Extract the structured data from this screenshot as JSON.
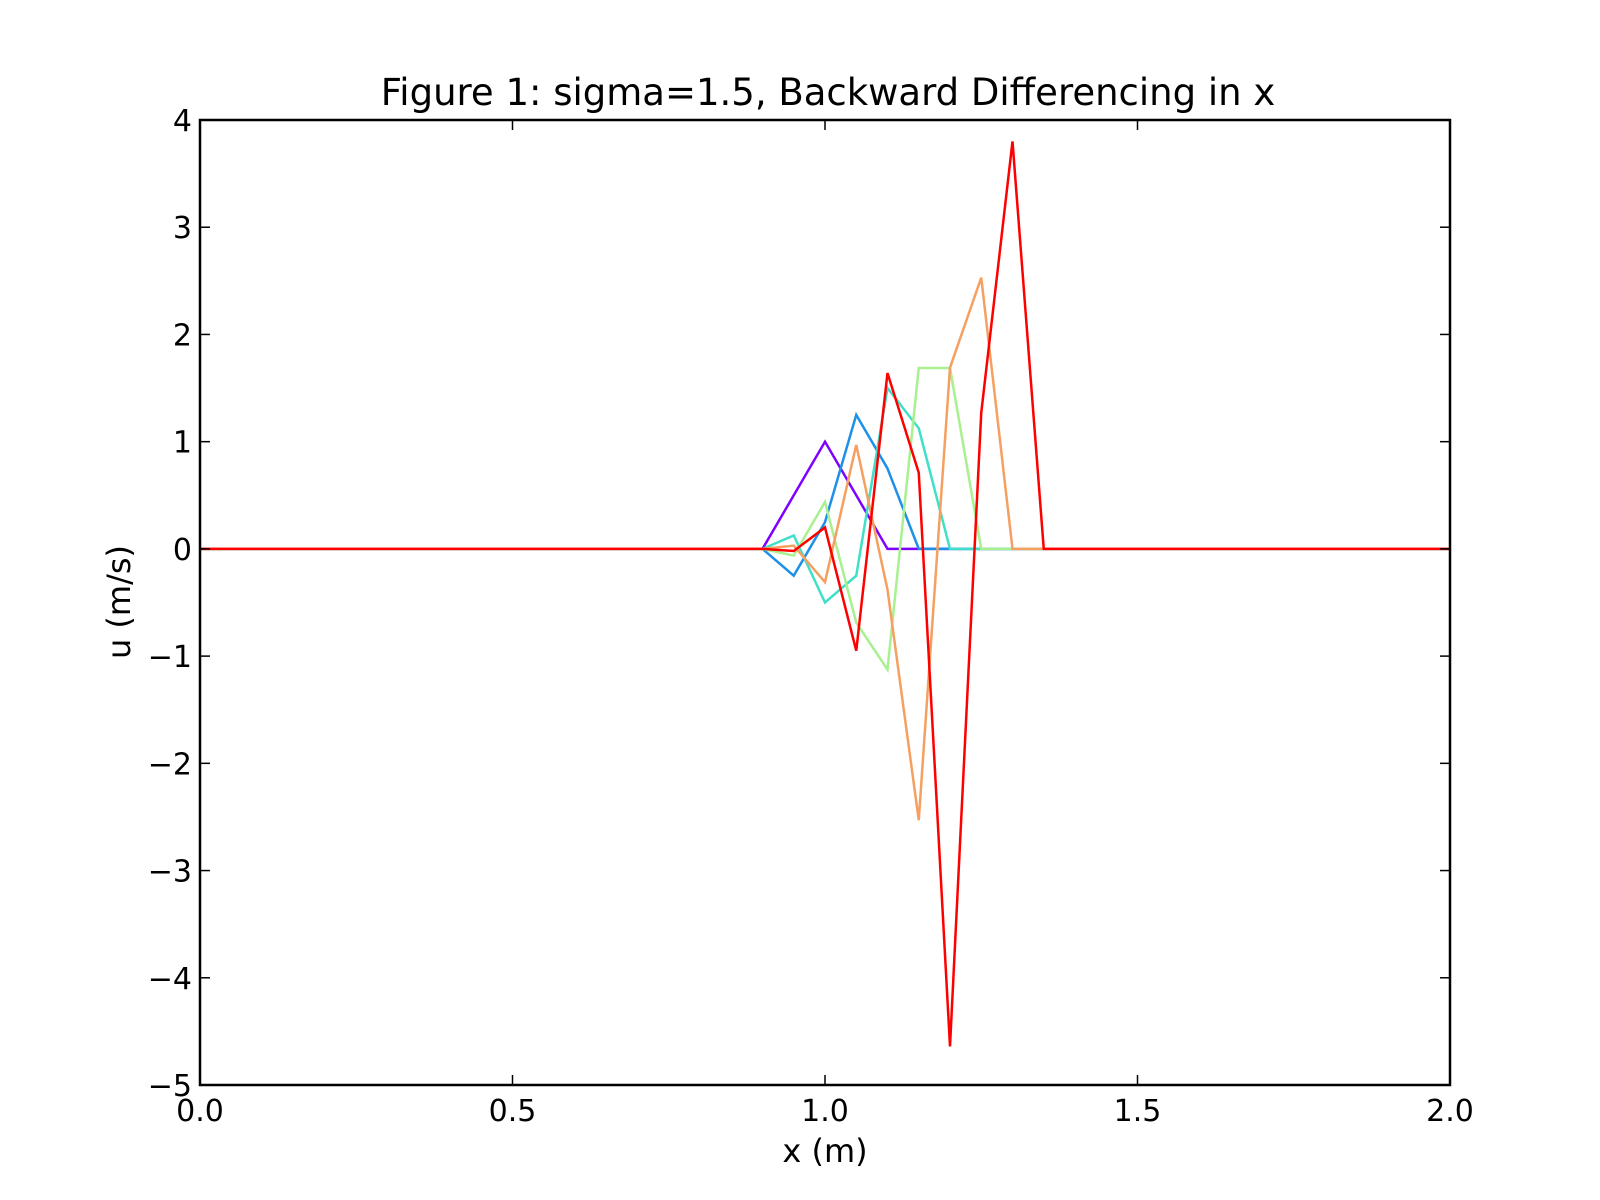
{
  "chart_data": {
    "type": "line",
    "title": "Figure 1: sigma=1.5, Backward Differencing in x",
    "xlabel": "x (m)",
    "ylabel": "u (m/s)",
    "xlim": [
      0.0,
      2.0
    ],
    "ylim": [
      -5,
      4
    ],
    "grid": false,
    "legend": "none",
    "xticks": [
      0.0,
      0.5,
      1.0,
      1.5,
      2.0
    ],
    "xtick_labels": [
      "0.0",
      "0.5",
      "1.0",
      "1.5",
      "2.0"
    ],
    "yticks": [
      -5,
      -4,
      -3,
      -2,
      -1,
      0,
      1,
      2,
      3,
      4
    ],
    "ytick_labels": [
      "−5",
      "−4",
      "−3",
      "−2",
      "−1",
      "0",
      "1",
      "2",
      "3",
      "4"
    ],
    "series": [
      {
        "color": "#8000ff",
        "x": [
          0.0,
          0.9,
          1.0,
          1.1,
          2.0
        ],
        "y": [
          0,
          0,
          1.0,
          0,
          0
        ]
      },
      {
        "color": "#1e90e8",
        "x": [
          0.0,
          0.9,
          0.95,
          1.0,
          1.05,
          1.1,
          1.15,
          2.0
        ],
        "y": [
          0,
          0,
          -0.25,
          0.25,
          1.25,
          0.75,
          0,
          0
        ]
      },
      {
        "color": "#40e0c8",
        "x": [
          0.0,
          0.9,
          0.95,
          1.0,
          1.05,
          1.1,
          1.15,
          1.2,
          2.0
        ],
        "y": [
          0,
          0,
          0.125,
          -0.5,
          -0.25,
          1.5,
          1.125,
          0,
          0
        ]
      },
      {
        "color": "#a8f090",
        "x": [
          0.0,
          0.9,
          0.95,
          1.0,
          1.05,
          1.1,
          1.15,
          1.2,
          1.25,
          2.0
        ],
        "y": [
          0,
          0,
          -0.0625,
          0.4375,
          -0.6875,
          -1.125,
          1.6875,
          1.6875,
          0,
          0
        ]
      },
      {
        "color": "#f5a060",
        "x": [
          0.0,
          0.9,
          0.95,
          1.0,
          1.05,
          1.1,
          1.15,
          1.2,
          1.25,
          1.3,
          2.0
        ],
        "y": [
          0,
          0,
          0.03,
          -0.31,
          0.97,
          -0.38,
          -2.53,
          1.69,
          2.53,
          0,
          0
        ]
      },
      {
        "color": "#ff0000",
        "x": [
          0.0,
          0.9,
          0.95,
          1.0,
          1.05,
          1.1,
          1.15,
          1.2,
          1.25,
          1.3,
          1.35,
          2.0
        ],
        "y": [
          0,
          0,
          -0.02,
          0.2,
          -0.95,
          1.64,
          0.71,
          -4.64,
          1.27,
          3.8,
          0,
          0
        ]
      }
    ]
  }
}
